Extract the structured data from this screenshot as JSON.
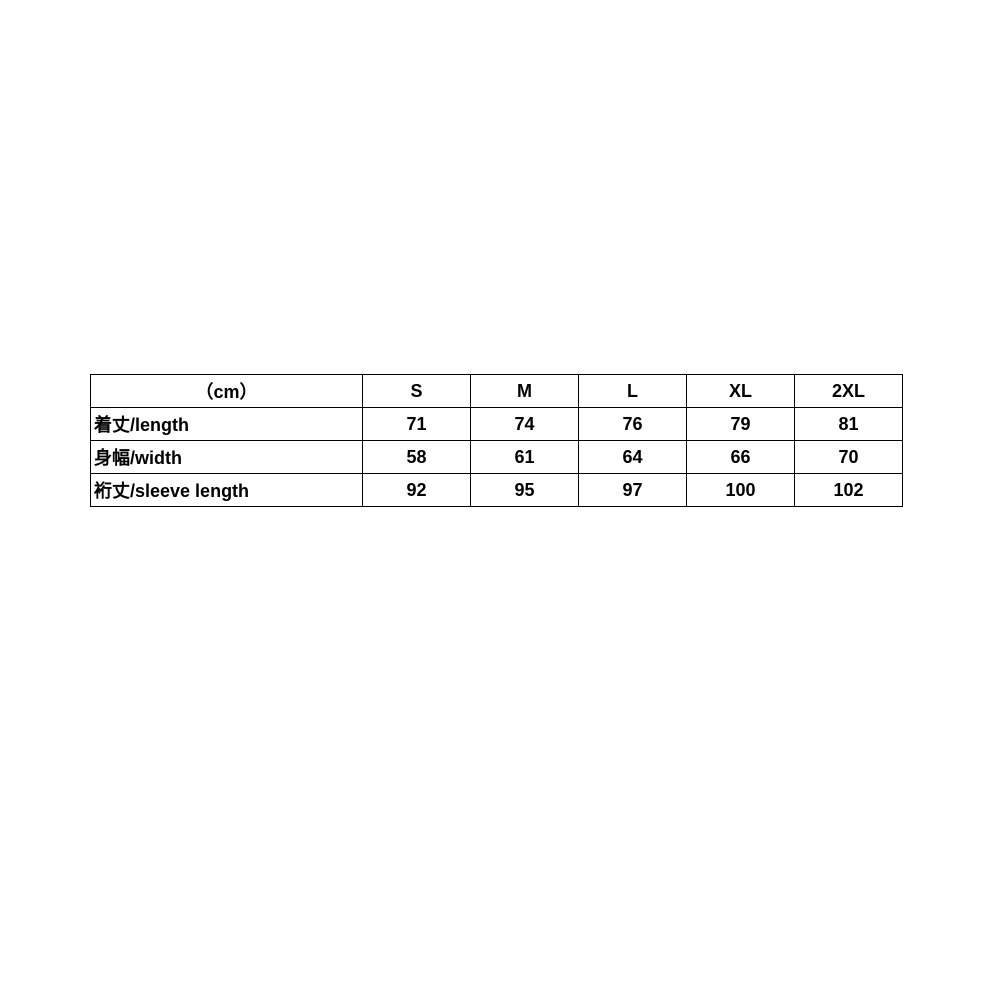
{
  "size_table": {
    "header": [
      "（cm）",
      "S",
      "M",
      "L",
      "XL",
      "2XL"
    ],
    "rows": [
      {
        "label": "着丈/length",
        "values": [
          "71",
          "74",
          "76",
          "79",
          "81"
        ]
      },
      {
        "label": "身幅/width",
        "values": [
          "58",
          "61",
          "64",
          "66",
          "70"
        ]
      },
      {
        "label": "裄丈/sleeve length",
        "values": [
          "92",
          "95",
          "97",
          "100",
          "102"
        ]
      }
    ]
  }
}
